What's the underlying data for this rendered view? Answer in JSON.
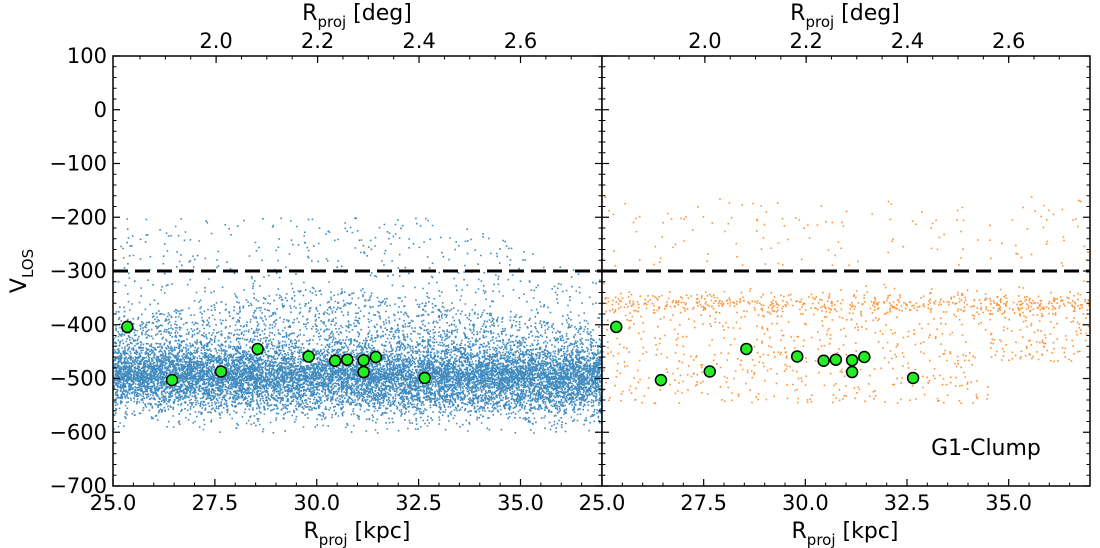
{
  "chart_data": [
    {
      "type": "scatter",
      "panel": "left",
      "xlabel": "R",
      "xlabel_sub": "proj",
      "xlabel_unit": " [kpc]",
      "ylabel": "V",
      "ylabel_sub": "LOS",
      "top_xlabel": "R",
      "top_xlabel_sub": "proj",
      "top_xlabel_unit": " [deg]",
      "xlim": [
        25.0,
        37.0
      ],
      "ylim": [
        -700,
        100
      ],
      "xticks": [
        25.0,
        27.5,
        30.0,
        32.5,
        35.0
      ],
      "xtick_labels": [
        "25.0",
        "27.5",
        "30.0",
        "32.5",
        "35.0"
      ],
      "yticks": [
        100,
        0,
        -100,
        -200,
        -300,
        -400,
        -500,
        -600,
        -700
      ],
      "ytick_labels": [
        "100",
        "0",
        "−100",
        "−200",
        "−300",
        "−400",
        "−500",
        "−600",
        "−700"
      ],
      "top_xticks": [
        2.0,
        2.2,
        2.4,
        2.6
      ],
      "top_xtick_labels": [
        "2.0",
        "2.2",
        "2.4",
        "2.6"
      ],
      "reference_line": -300,
      "background_color": "#1f77b4",
      "background_points": {
        "count": 14000,
        "x_range": [
          25.0,
          37.0
        ],
        "core_v_mean": -500,
        "core_v_sd": 32,
        "tail_v_max": -200,
        "v_min": -600
      },
      "series": [
        {
          "name": "",
          "color": "#22ee22",
          "points": [
            {
              "x": 25.35,
              "y": -404
            },
            {
              "x": 26.45,
              "y": -503
            },
            {
              "x": 27.65,
              "y": -487
            },
            {
              "x": 28.55,
              "y": -445
            },
            {
              "x": 29.8,
              "y": -459
            },
            {
              "x": 30.45,
              "y": -467
            },
            {
              "x": 30.75,
              "y": -465
            },
            {
              "x": 31.15,
              "y": -466
            },
            {
              "x": 31.45,
              "y": -460
            },
            {
              "x": 31.15,
              "y": -488
            },
            {
              "x": 32.65,
              "y": -499
            }
          ]
        }
      ],
      "grid": false
    },
    {
      "type": "scatter",
      "panel": "right",
      "xlabel": "R",
      "xlabel_sub": "proj",
      "xlabel_unit": " [kpc]",
      "top_xlabel": "R",
      "top_xlabel_sub": "proj",
      "top_xlabel_unit": " [deg]",
      "annotation": "G1-Clump",
      "xlim": [
        25.0,
        37.0
      ],
      "ylim": [
        -700,
        100
      ],
      "xticks": [
        25.0,
        27.5,
        30.0,
        32.5,
        35.0
      ],
      "xtick_labels": [
        "25.0",
        "27.5",
        "30.0",
        "32.5",
        "35.0"
      ],
      "top_xticks": [
        2.0,
        2.2,
        2.4,
        2.6
      ],
      "top_xtick_labels": [
        "2.0",
        "2.2",
        "2.4",
        "2.6"
      ],
      "reference_line": -300,
      "background_color": "#ff7f0e",
      "background_points": {
        "count": 1400,
        "x_range": [
          25.0,
          37.0
        ],
        "band_v_mean": -358,
        "band_v_sd": 12,
        "v_max": -160,
        "v_min": -580
      },
      "series": [
        {
          "name": "",
          "color": "#22ee22",
          "points": [
            {
              "x": 25.35,
              "y": -404
            },
            {
              "x": 26.45,
              "y": -503
            },
            {
              "x": 27.65,
              "y": -487
            },
            {
              "x": 28.55,
              "y": -445
            },
            {
              "x": 29.8,
              "y": -459
            },
            {
              "x": 30.45,
              "y": -467
            },
            {
              "x": 30.75,
              "y": -465
            },
            {
              "x": 31.15,
              "y": -466
            },
            {
              "x": 31.45,
              "y": -460
            },
            {
              "x": 31.15,
              "y": -488
            },
            {
              "x": 32.65,
              "y": -499
            }
          ]
        }
      ],
      "grid": false
    }
  ]
}
